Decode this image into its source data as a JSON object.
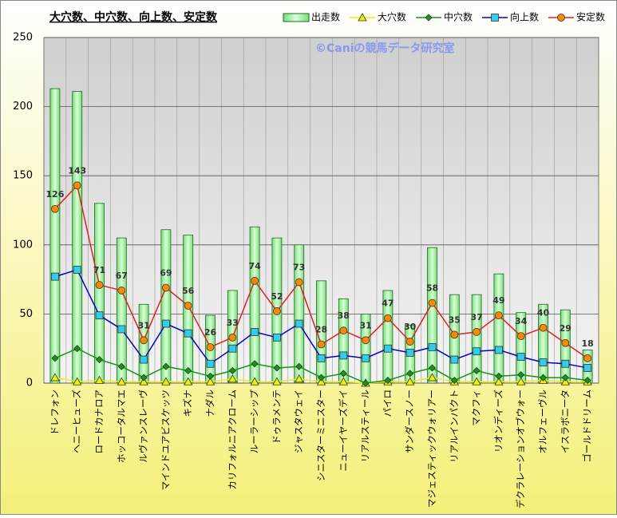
{
  "chart_data": {
    "type": "bar",
    "title": "大穴数、中穴数、向上数、安定数",
    "annotation": "©Caniの競馬データ研究室",
    "categories": [
      "ドレフォン",
      "ヘニーヒューズ",
      "ロードカナロア",
      "ホッコータルマエ",
      "ルヴァンスレーヴ",
      "マインドユアビスケッツ",
      "キズナ",
      "ナダル",
      "カリフォルニアクローム",
      "ルーラーシップ",
      "ドゥラメンテ",
      "ジャスタウェイ",
      "シニスターミニスター",
      "ニューイヤーズデイ",
      "リアルスティール",
      "パイロ",
      "サンダースノー",
      "マジェスティックウォリアー",
      "リアルインパクト",
      "マクフィ",
      "リオンディーズ",
      "デクラレーションオブウォー",
      "オルフェーヴル",
      "イスラボニータ",
      "ゴールドドリーム"
    ],
    "series": [
      {
        "name": "出走数",
        "type": "bar",
        "color": "#aaf0aa",
        "values": [
          213,
          211,
          130,
          105,
          57,
          111,
          107,
          49,
          67,
          113,
          105,
          100,
          74,
          61,
          50,
          67,
          42,
          98,
          64,
          64,
          79,
          51,
          57,
          53,
          24
        ]
      },
      {
        "name": "大穴数",
        "type": "line",
        "marker": "triangle",
        "color": "#f0f000",
        "values": [
          4,
          1,
          2,
          1,
          1,
          1,
          1,
          1,
          3,
          1,
          1,
          3,
          1,
          1,
          0,
          1,
          1,
          4,
          1,
          1,
          1,
          1,
          2,
          1,
          1
        ]
      },
      {
        "name": "中穴数",
        "type": "line",
        "marker": "diamond",
        "color": "#119911",
        "values": [
          18,
          25,
          17,
          12,
          4,
          12,
          9,
          5,
          9,
          14,
          11,
          12,
          4,
          7,
          0,
          2,
          7,
          11,
          2,
          9,
          5,
          6,
          4,
          4,
          2
        ]
      },
      {
        "name": "向上数",
        "type": "line",
        "marker": "square",
        "color": "#0000cc",
        "values": [
          77,
          82,
          49,
          39,
          17,
          43,
          36,
          14,
          25,
          37,
          33,
          43,
          18,
          20,
          18,
          25,
          22,
          26,
          17,
          23,
          24,
          19,
          15,
          14,
          11
        ]
      },
      {
        "name": "安定数",
        "type": "line",
        "marker": "circle",
        "color": "#dd2222",
        "show_labels": true,
        "values": [
          126,
          143,
          71,
          67,
          31,
          69,
          56,
          26,
          33,
          74,
          52,
          73,
          28,
          38,
          31,
          47,
          30,
          58,
          35,
          37,
          49,
          34,
          40,
          29,
          18
        ]
      }
    ],
    "ylim": [
      0,
      250
    ],
    "yticks": [
      0,
      50,
      100,
      150,
      200,
      250
    ],
    "grid": true
  }
}
